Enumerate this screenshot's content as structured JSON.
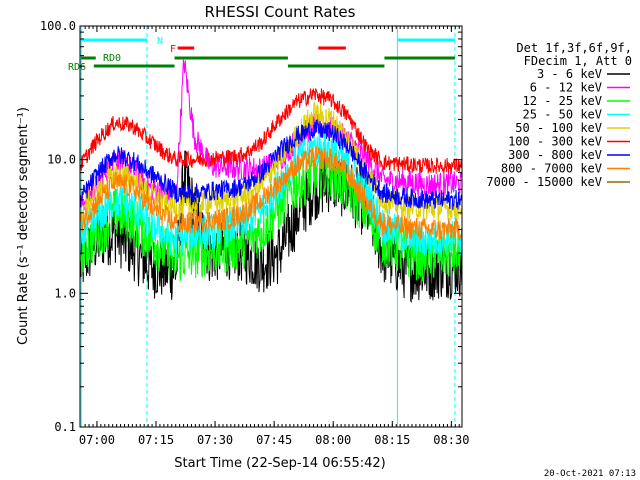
{
  "chart_data": {
    "type": "line",
    "title": "RHESSI Count Rates",
    "xlabel": "Start Time (22-Sep-14 06:55:42)",
    "ylabel": "Count Rate (s⁻¹ detector segment⁻¹)",
    "yscale": "log",
    "ylim": [
      0.1,
      100
    ],
    "x_tick_labels": [
      "07:00",
      "07:15",
      "07:30",
      "07:45",
      "08:00",
      "08:15",
      "08:30"
    ],
    "x_tick_minutes": [
      4.3,
      19.3,
      34.3,
      49.3,
      64.3,
      79.3,
      94.3
    ],
    "xlim_minutes": [
      0,
      97
    ],
    "y_tick_labels": [
      "0.1",
      "1.0",
      "10.0",
      "100.0"
    ],
    "legend_header": [
      "Det 1f,3f,6f,9f,",
      "FDecim 1, Att 0"
    ],
    "legend_placement": "right",
    "series": [
      {
        "name": "3 - 6 keV",
        "color": "#000000",
        "values": [
          1.6,
          2.5,
          2.9,
          2.2,
          1.6,
          1.5,
          1.5,
          8.0,
          4.0,
          2.0,
          2.2,
          2.0,
          1.7,
          2.0,
          3.8,
          6.0,
          7.0,
          6.0,
          4.2,
          2.0,
          1.5,
          1.5,
          1.6
        ]
      },
      {
        "name": "6 - 12 keV",
        "color": "#ff00ff",
        "values": [
          4.5,
          6.5,
          10.5,
          8.5,
          6.2,
          5.6,
          5.8,
          55.0,
          15.0,
          9.0,
          8.8,
          8.6,
          8.5,
          10.0,
          14.0,
          18.0,
          17.0,
          14.0,
          10.0,
          7.0,
          6.8,
          6.5,
          6.6
        ]
      },
      {
        "name": "12 - 25 keV",
        "color": "#00ff00",
        "values": [
          2.0,
          2.8,
          4.0,
          3.6,
          2.6,
          2.0,
          1.8,
          1.9,
          2.0,
          2.1,
          2.2,
          2.4,
          3.0,
          4.5,
          6.5,
          8.0,
          7.8,
          6.0,
          4.0,
          2.5,
          2.0,
          1.9,
          2.0
        ]
      },
      {
        "name": "25 - 50 keV",
        "color": "#00ffff",
        "values": [
          2.6,
          3.6,
          5.0,
          4.5,
          3.4,
          2.7,
          2.5,
          2.6,
          2.8,
          2.9,
          3.0,
          3.4,
          4.2,
          6.5,
          10.0,
          12.5,
          12.0,
          9.0,
          5.5,
          3.2,
          2.6,
          2.5,
          2.6
        ]
      },
      {
        "name": "50 - 100 keV",
        "color": "#e0d000",
        "values": [
          4.0,
          5.6,
          8.0,
          7.2,
          5.6,
          4.6,
          4.3,
          4.4,
          4.6,
          4.8,
          5.0,
          5.4,
          6.5,
          10.0,
          15.0,
          22.0,
          20.0,
          14.0,
          8.0,
          5.0,
          4.5,
          4.3,
          4.4
        ]
      },
      {
        "name": "100 - 300 keV",
        "color": "#ff0000",
        "values": [
          9.0,
          14.0,
          19.0,
          18.0,
          14.0,
          11.0,
          10.0,
          10.2,
          10.0,
          10.2,
          10.4,
          11.0,
          13.5,
          20.0,
          27.0,
          31.0,
          28.0,
          21.0,
          12.0,
          9.5,
          9.2,
          9.0,
          9.0
        ]
      },
      {
        "name": "300 - 800 keV",
        "color": "#0000ff",
        "values": [
          5.0,
          7.8,
          11.0,
          10.0,
          8.0,
          6.5,
          5.6,
          5.6,
          5.6,
          5.8,
          6.0,
          6.4,
          8.0,
          11.5,
          15.0,
          17.0,
          16.0,
          12.5,
          7.5,
          5.6,
          5.2,
          5.0,
          5.0
        ]
      },
      {
        "name": "800 - 7000 keV",
        "color": "#ff8000",
        "values": [
          3.3,
          4.8,
          6.8,
          6.2,
          4.6,
          3.7,
          3.3,
          3.3,
          3.4,
          3.5,
          3.6,
          4.0,
          5.0,
          6.8,
          9.0,
          10.5,
          10.0,
          7.8,
          4.6,
          3.3,
          3.1,
          3.0,
          3.0
        ]
      },
      {
        "name": "7000 - 15000 keV",
        "color": "#996600",
        "values": []
      }
    ],
    "series_x_minutes": [
      0,
      4.4,
      8.8,
      13.2,
      17.6,
      22.0,
      24.5,
      26.4,
      29.0,
      33.0,
      37.4,
      41.8,
      46.2,
      50.6,
      55.0,
      59.4,
      63.8,
      68.2,
      73.0,
      77.0,
      83.0,
      88.0,
      96.0
    ],
    "annotations": [
      {
        "label": "N",
        "color": "#00ffff"
      },
      {
        "label": "F",
        "color": "#ff0000"
      },
      {
        "label": "RD0",
        "color": "#008000"
      },
      {
        "label": "RD6",
        "color": "#008000"
      }
    ],
    "colors": {
      "cyan_marker": "#00ffff",
      "flare_marker": "#ff0000",
      "green_marker": "#008000"
    }
  },
  "timestamp": "20-Oct-2021 07:13"
}
